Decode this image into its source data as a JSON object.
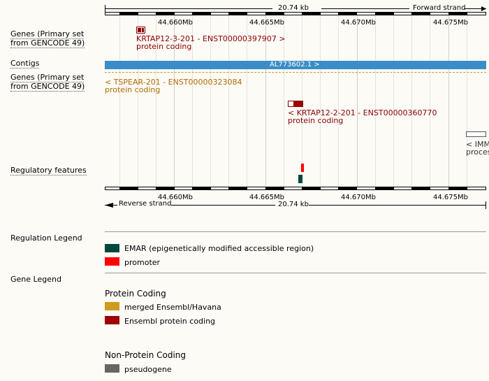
{
  "top_ruler": {
    "span_label": "20.74 kb",
    "strand_label": "Forward strand"
  },
  "bottom_ruler": {
    "span_label": "20.74 kb",
    "strand_label": "Reverse strand"
  },
  "ticks": [
    "44.660Mb",
    "44.665Mb",
    "44.670Mb",
    "44.675Mb"
  ],
  "tracks": {
    "genes_fwd": {
      "label_line1": "Genes (Primary set",
      "label_line2": "from GENCODE 49)"
    },
    "contigs": {
      "label": "Contigs",
      "contig_name": "AL773602.1 >"
    },
    "genes_rev": {
      "label_line1": "Genes (Primary set",
      "label_line2": "from GENCODE 49)"
    },
    "regulatory": {
      "label": "Regulatory features"
    }
  },
  "genes": {
    "krtap12_3": {
      "name": "KRTAP12-3-201 - ENST00000397907 >",
      "biotype": "protein coding"
    },
    "tspear": {
      "name": "< TSPEAR-201 - ENST00000323084",
      "biotype": "protein coding"
    },
    "krtap12_2": {
      "name": "< KRTAP12-2-201 - ENST00000360770",
      "biotype": "protein coding"
    },
    "imm": {
      "name": "< IMM",
      "biotype": "proces"
    }
  },
  "regulation_legend": {
    "title": "Regulation Legend",
    "items": [
      {
        "label": "EMAR (epigenetically modified accessible region)",
        "color": "#00483c"
      },
      {
        "label": "promoter",
        "color": "#ff0000"
      }
    ]
  },
  "gene_legend": {
    "title": "Gene Legend",
    "protein_coding_title": "Protein Coding",
    "protein_coding_items": [
      {
        "label": "merged Ensembl/Havana",
        "color": "#cd9b1d"
      },
      {
        "label": "Ensembl protein coding",
        "color": "#a00000"
      }
    ],
    "non_protein_coding_title": "Non-Protein Coding",
    "non_protein_coding_items": [
      {
        "label": "pseudogene",
        "color": "#666666"
      }
    ]
  },
  "colors": {
    "contig": "#3a8dc7",
    "gene_red": "#8b0000",
    "tspear": "#b26a00"
  }
}
